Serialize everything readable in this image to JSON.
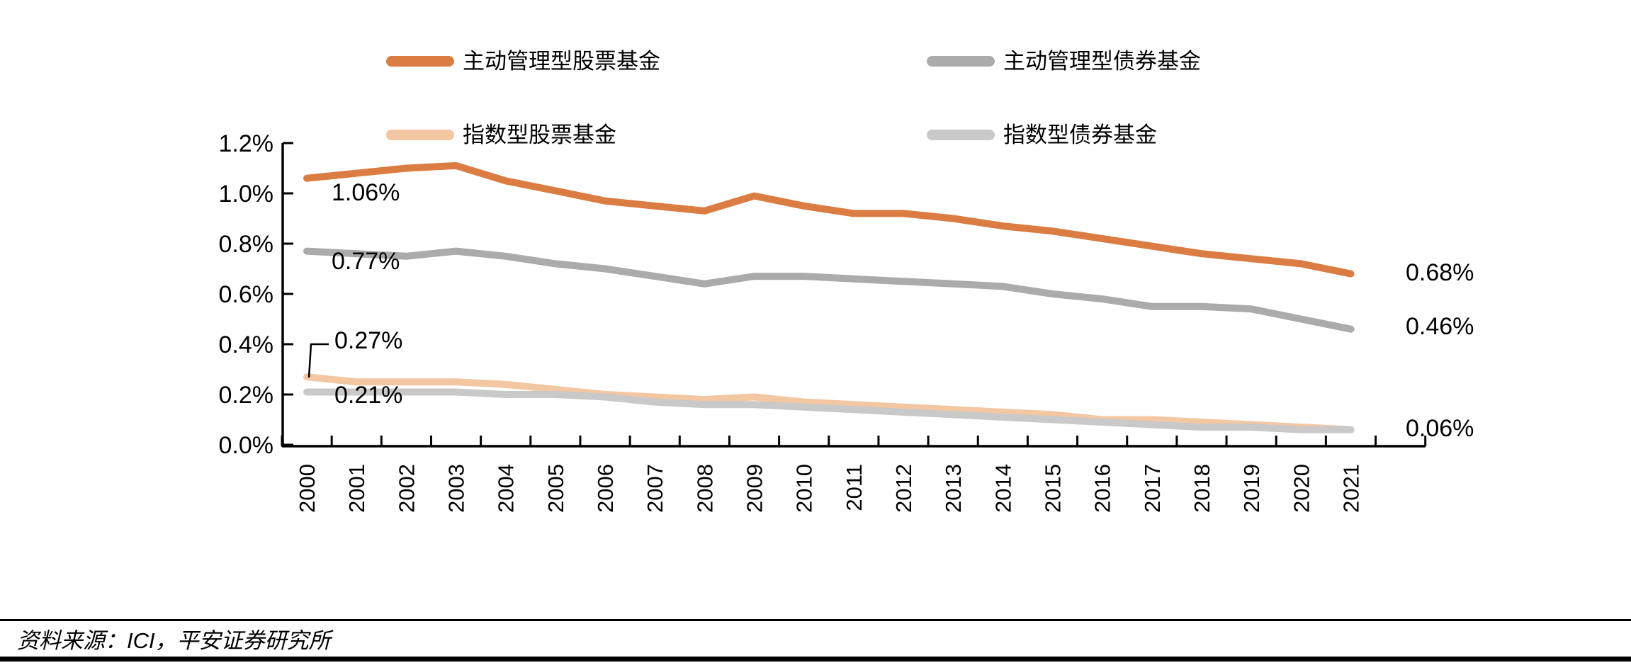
{
  "chart_data": {
    "type": "line",
    "title": "",
    "xlabel": "",
    "ylabel": "",
    "x": [
      "2000",
      "2001",
      "2002",
      "2003",
      "2004",
      "2005",
      "2006",
      "2007",
      "2008",
      "2009",
      "2010",
      "2011",
      "2012",
      "2013",
      "2014",
      "2015",
      "2016",
      "2017",
      "2018",
      "2019",
      "2020",
      "2021"
    ],
    "y_ticks": [
      "0.0%",
      "0.2%",
      "0.4%",
      "0.6%",
      "0.8%",
      "1.0%",
      "1.2%"
    ],
    "ylim": [
      0,
      1.2
    ],
    "grid": false,
    "legend_position": "top",
    "series": [
      {
        "name": "主动管理型股票基金",
        "color": "#DB7C42",
        "values": [
          1.06,
          1.08,
          1.1,
          1.11,
          1.05,
          1.01,
          0.97,
          0.95,
          0.93,
          0.99,
          0.95,
          0.92,
          0.92,
          0.9,
          0.87,
          0.85,
          0.82,
          0.79,
          0.76,
          0.74,
          0.72,
          0.68
        ]
      },
      {
        "name": "主动管理型债券基金",
        "color": "#ABABAB",
        "values": [
          0.77,
          0.76,
          0.75,
          0.77,
          0.75,
          0.72,
          0.7,
          0.67,
          0.64,
          0.67,
          0.67,
          0.66,
          0.65,
          0.64,
          0.63,
          0.6,
          0.58,
          0.55,
          0.55,
          0.54,
          0.5,
          0.46
        ]
      },
      {
        "name": "指数型股票基金",
        "color": "#F2C7A2",
        "values": [
          0.27,
          0.25,
          0.25,
          0.25,
          0.24,
          0.22,
          0.2,
          0.19,
          0.18,
          0.19,
          0.17,
          0.16,
          0.15,
          0.14,
          0.13,
          0.12,
          0.1,
          0.1,
          0.09,
          0.08,
          0.07,
          0.06
        ]
      },
      {
        "name": "指数型债券基金",
        "color": "#C9C9C9",
        "values": [
          0.21,
          0.21,
          0.21,
          0.21,
          0.2,
          0.2,
          0.19,
          0.17,
          0.16,
          0.16,
          0.15,
          0.14,
          0.13,
          0.12,
          0.11,
          0.1,
          0.09,
          0.08,
          0.07,
          0.07,
          0.06,
          0.06
        ]
      }
    ],
    "annotations": {
      "start_active_equity": "1.06%",
      "start_active_bond": "0.77%",
      "start_index_equity": "0.27%",
      "start_index_bond": "0.21%",
      "end_active_equity": "0.68%",
      "end_active_bond": "0.46%",
      "end_index_bond": "0.06%"
    }
  },
  "footer": {
    "source_text": "资料来源：ICI，平安证券研究所"
  }
}
